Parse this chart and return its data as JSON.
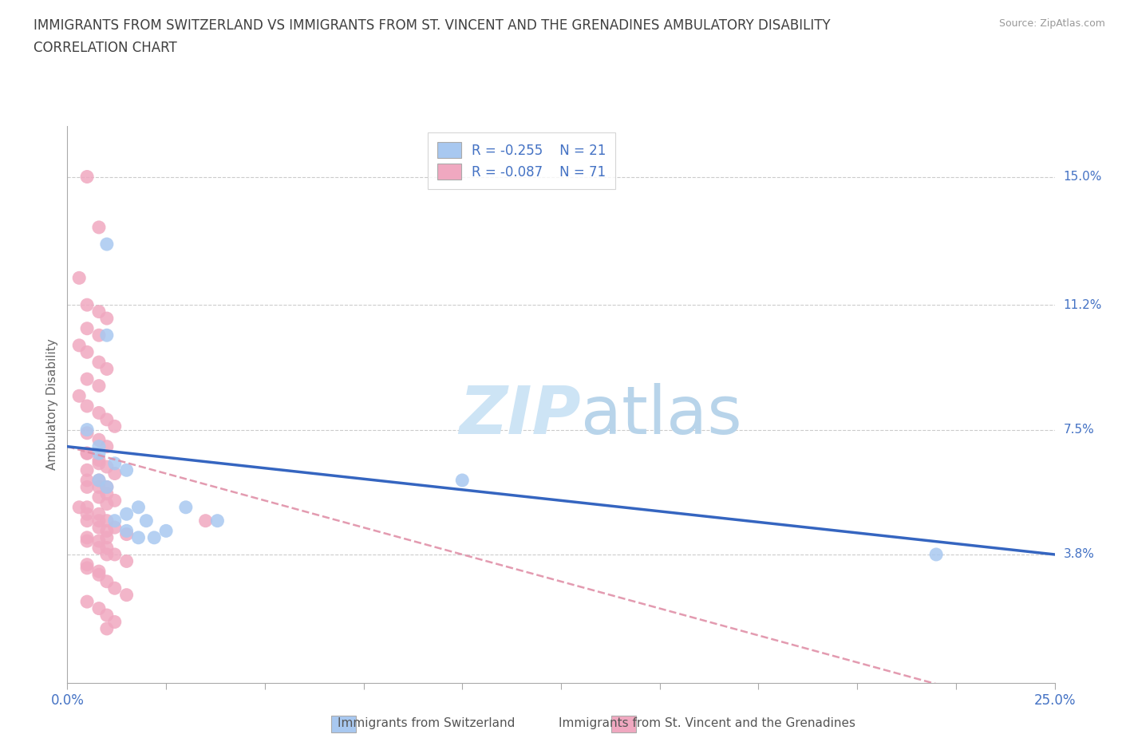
{
  "title_line1": "IMMIGRANTS FROM SWITZERLAND VS IMMIGRANTS FROM ST. VINCENT AND THE GRENADINES AMBULATORY DISABILITY",
  "title_line2": "CORRELATION CHART",
  "source": "Source: ZipAtlas.com",
  "ylabel": "Ambulatory Disability",
  "xlim": [
    0.0,
    0.25
  ],
  "ylim": [
    0.0,
    0.165
  ],
  "ytick_labels_right": [
    "15.0%",
    "11.2%",
    "7.5%",
    "3.8%"
  ],
  "ytick_vals_right": [
    0.15,
    0.112,
    0.075,
    0.038
  ],
  "switzerland_R": -0.255,
  "switzerland_N": 21,
  "svgrenadines_R": -0.087,
  "svgrenadines_N": 71,
  "switzerland_color": "#a8c8f0",
  "svgrenadines_color": "#f0a8c0",
  "line_switzerland_color": "#3565c0",
  "line_svgrenadines_color": "#e090a8",
  "legend_label_1": "Immigrants from Switzerland",
  "legend_label_2": "Immigrants from St. Vincent and the Grenadines",
  "switzerland_x": [
    0.01,
    0.005,
    0.008,
    0.01,
    0.008,
    0.012,
    0.008,
    0.015,
    0.01,
    0.018,
    0.015,
    0.02,
    0.012,
    0.025,
    0.015,
    0.018,
    0.022,
    0.03,
    0.1,
    0.22,
    0.038
  ],
  "switzerland_y": [
    0.13,
    0.075,
    0.07,
    0.103,
    0.068,
    0.065,
    0.06,
    0.063,
    0.058,
    0.052,
    0.05,
    0.048,
    0.048,
    0.045,
    0.045,
    0.043,
    0.043,
    0.052,
    0.06,
    0.038,
    0.048
  ],
  "svgrenadines_x": [
    0.005,
    0.008,
    0.003,
    0.005,
    0.008,
    0.01,
    0.005,
    0.008,
    0.003,
    0.005,
    0.008,
    0.01,
    0.005,
    0.008,
    0.003,
    0.005,
    0.008,
    0.01,
    0.012,
    0.005,
    0.008,
    0.01,
    0.005,
    0.008,
    0.01,
    0.012,
    0.005,
    0.008,
    0.01,
    0.012,
    0.005,
    0.008,
    0.01,
    0.012,
    0.015,
    0.005,
    0.008,
    0.01,
    0.012,
    0.015,
    0.005,
    0.008,
    0.01,
    0.012,
    0.015,
    0.005,
    0.008,
    0.01,
    0.012,
    0.005,
    0.008,
    0.01,
    0.005,
    0.008,
    0.01,
    0.005,
    0.008,
    0.003,
    0.005,
    0.008,
    0.01,
    0.005,
    0.008,
    0.01,
    0.005,
    0.008,
    0.01,
    0.005,
    0.008,
    0.01,
    0.035
  ],
  "svgrenadines_y": [
    0.15,
    0.135,
    0.12,
    0.112,
    0.11,
    0.108,
    0.105,
    0.103,
    0.1,
    0.098,
    0.095,
    0.093,
    0.09,
    0.088,
    0.085,
    0.082,
    0.08,
    0.078,
    0.076,
    0.074,
    0.072,
    0.07,
    0.068,
    0.066,
    0.064,
    0.062,
    0.06,
    0.058,
    0.056,
    0.054,
    0.052,
    0.05,
    0.048,
    0.046,
    0.044,
    0.043,
    0.042,
    0.04,
    0.038,
    0.036,
    0.034,
    0.032,
    0.03,
    0.028,
    0.026,
    0.024,
    0.022,
    0.02,
    0.018,
    0.05,
    0.048,
    0.045,
    0.042,
    0.04,
    0.038,
    0.035,
    0.033,
    0.052,
    0.048,
    0.046,
    0.043,
    0.058,
    0.055,
    0.053,
    0.063,
    0.06,
    0.058,
    0.068,
    0.065,
    0.016,
    0.048
  ]
}
